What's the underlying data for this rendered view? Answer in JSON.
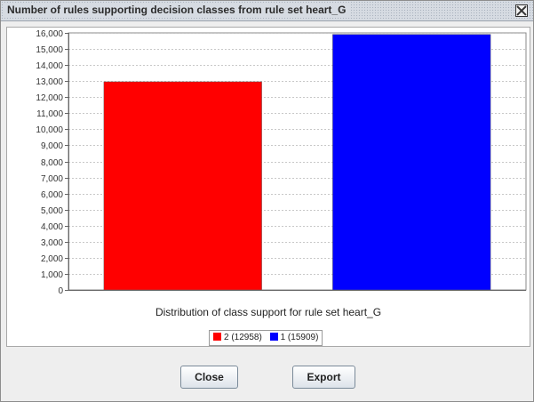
{
  "window": {
    "title": "Number of rules supporting decision classes from rule set heart_G"
  },
  "chart_data": {
    "type": "bar",
    "title": "",
    "xlabel": "Distribution of class support for rule set heart_G",
    "ylabel": "",
    "ylim": [
      0,
      16000
    ],
    "yticks": [
      0,
      1000,
      2000,
      3000,
      4000,
      5000,
      6000,
      7000,
      8000,
      9000,
      10000,
      11000,
      12000,
      13000,
      14000,
      15000,
      16000
    ],
    "ytick_labels": [
      "0",
      "1,000",
      "2,000",
      "3,000",
      "4,000",
      "5,000",
      "6,000",
      "7,000",
      "8,000",
      "9,000",
      "10,000",
      "11,000",
      "12,000",
      "13,000",
      "14,000",
      "15,000",
      "16,000"
    ],
    "grid": true,
    "legend_position": "bottom-center",
    "categories": [
      "2",
      "1"
    ],
    "values": [
      12958,
      15909
    ],
    "colors": [
      "#ff0000",
      "#0000ff"
    ],
    "legend": [
      "2 (12958)",
      "1 (15909)"
    ]
  },
  "buttons": {
    "close": "Close",
    "export": "Export"
  }
}
